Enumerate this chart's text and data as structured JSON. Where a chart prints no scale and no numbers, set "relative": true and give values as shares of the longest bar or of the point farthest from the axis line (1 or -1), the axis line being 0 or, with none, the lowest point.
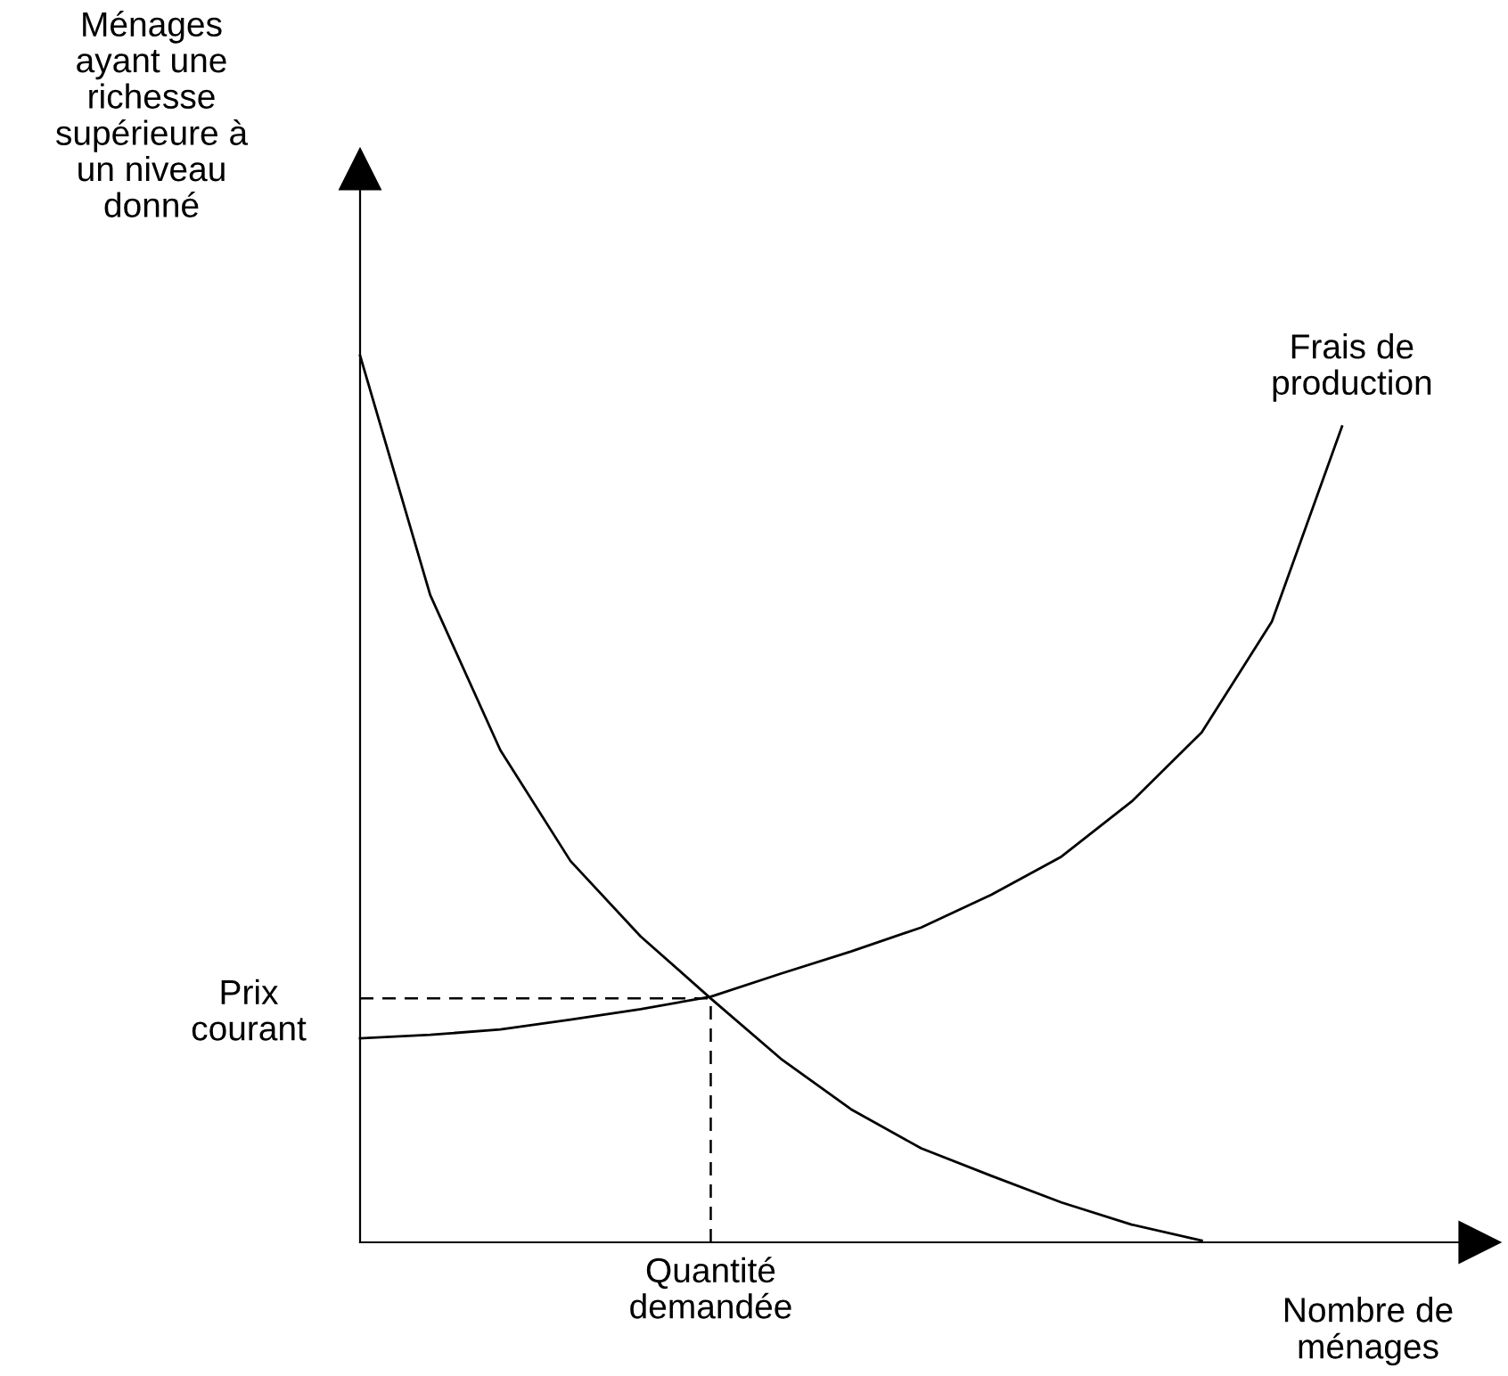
{
  "chart_data": {
    "type": "line",
    "relative": true,
    "xlabel": "Nombre de\nménages",
    "ylabel": "Ménages\nayant une\nrichesse\nsupérieure à\nun niveau\ndonné",
    "categories": [
      null,
      null,
      null,
      null,
      null,
      null,
      null,
      null,
      null,
      null,
      null,
      null,
      null,
      null,
      null
    ],
    "series": [
      {
        "color": "#000000",
        "values": [
          1,
          0.73,
          0.555,
          0.43,
          0.345,
          0.275,
          0.207,
          0.15,
          0.106,
          0.075,
          0.045,
          0.02,
          0.002,
          null,
          null
        ]
      },
      {
        "name": "Frais de\nproduction",
        "color": "#000000",
        "values": [
          0.23,
          0.234,
          0.24,
          0.251,
          0.263,
          0.277,
          0.303,
          0.328,
          0.355,
          0.392,
          0.435,
          0.497,
          0.575,
          0.7,
          0.92
        ]
      }
    ],
    "ref_lines": [
      {
        "axis": "y",
        "value": 0.275,
        "label": "Prix\ncourant",
        "line_style": "dashed"
      }
    ],
    "annotations": [
      "Quantité\ndemandée"
    ],
    "marker": "none",
    "line_style": "solid"
  }
}
